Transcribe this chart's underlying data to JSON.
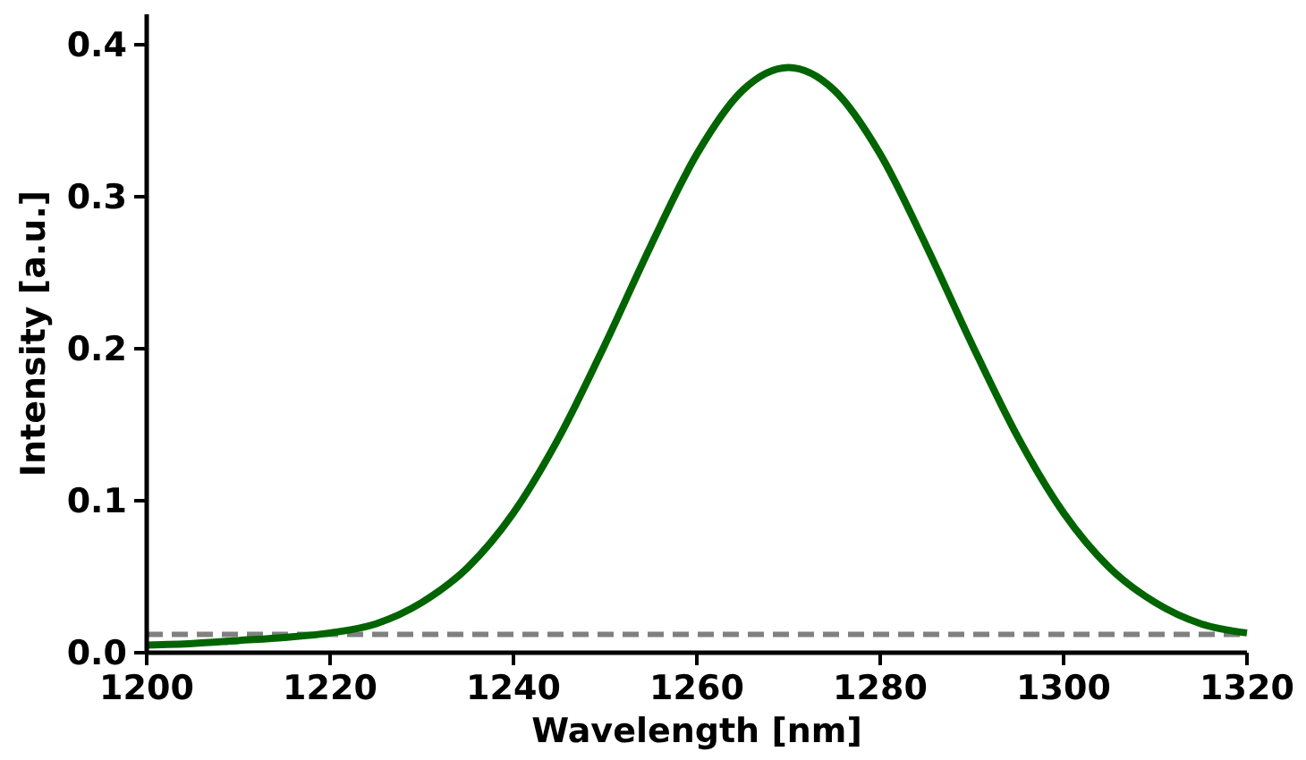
{
  "chart_data": {
    "type": "line",
    "xlabel": "Wavelength [nm]",
    "ylabel": "Intensity [a.u.]",
    "x": [
      1200,
      1205,
      1210,
      1215,
      1220,
      1225,
      1230,
      1235,
      1240,
      1245,
      1250,
      1255,
      1260,
      1265,
      1270,
      1275,
      1280,
      1285,
      1290,
      1295,
      1300,
      1305,
      1310,
      1315,
      1320
    ],
    "series": [
      {
        "color": "#006400",
        "values": [
          0.005,
          0.006,
          0.008,
          0.01,
          0.013,
          0.019,
          0.033,
          0.056,
          0.092,
          0.142,
          0.203,
          0.268,
          0.328,
          0.37,
          0.385,
          0.37,
          0.328,
          0.268,
          0.203,
          0.142,
          0.092,
          0.056,
          0.033,
          0.019,
          0.013
        ]
      }
    ],
    "xlim": [
      1200,
      1320
    ],
    "ylim": [
      0,
      0.42
    ],
    "xticks": [
      1200,
      1220,
      1240,
      1260,
      1280,
      1300,
      1320
    ],
    "yticks": [
      {
        "value": 0,
        "label": "0.0"
      },
      0.1,
      0.2,
      0.3,
      0.4
    ],
    "ref_lines": [
      {
        "axis": "y",
        "value": 0.012,
        "color": "#808080",
        "line_style": "dashed"
      }
    ],
    "grid": false
  }
}
